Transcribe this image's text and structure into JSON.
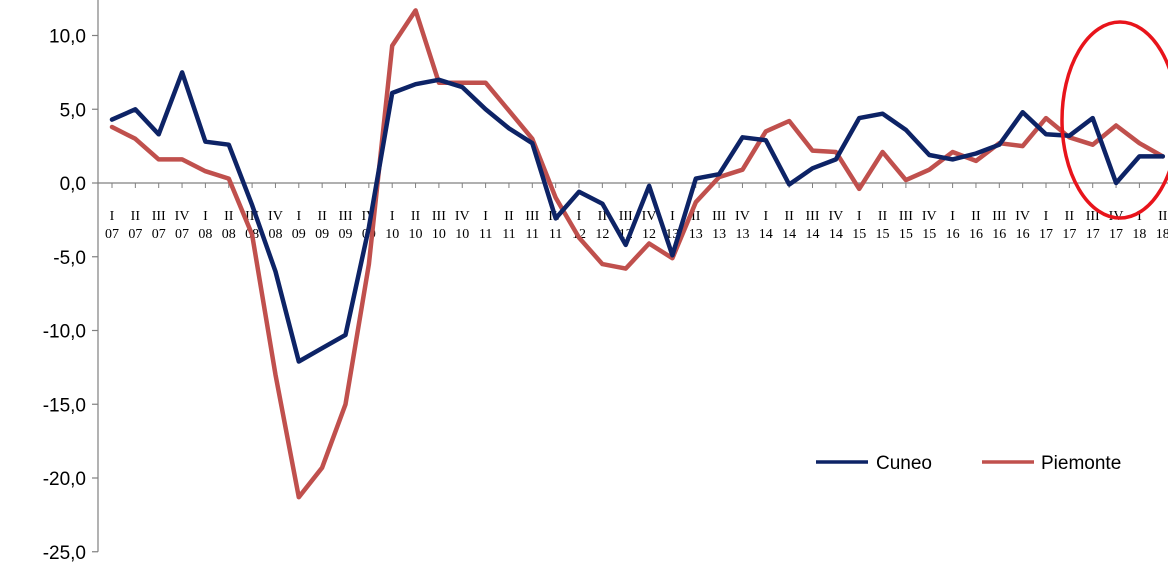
{
  "chart_data": {
    "type": "line",
    "title": "",
    "xlabel": "",
    "ylabel": "",
    "ylim": [
      -25,
      10
    ],
    "yticks": [
      "10,0",
      "5,0",
      "0,0",
      "-5,0",
      "-10,0",
      "-15,0",
      "-20,0",
      "-25,0"
    ],
    "ytick_values": [
      10,
      5,
      0,
      -5,
      -10,
      -15,
      -20,
      -25
    ],
    "grid": false,
    "legend_position": "bottom-right",
    "categories": [
      {
        "q": "I",
        "y": "07"
      },
      {
        "q": "II",
        "y": "07"
      },
      {
        "q": "III",
        "y": "07"
      },
      {
        "q": "IV",
        "y": "07"
      },
      {
        "q": "I",
        "y": "08"
      },
      {
        "q": "II",
        "y": "08"
      },
      {
        "q": "III",
        "y": "08"
      },
      {
        "q": "IV",
        "y": "08"
      },
      {
        "q": "I",
        "y": "09"
      },
      {
        "q": "II",
        "y": "09"
      },
      {
        "q": "III",
        "y": "09"
      },
      {
        "q": "IV",
        "y": "09"
      },
      {
        "q": "I",
        "y": "10"
      },
      {
        "q": "II",
        "y": "10"
      },
      {
        "q": "III",
        "y": "10"
      },
      {
        "q": "IV",
        "y": "10"
      },
      {
        "q": "I",
        "y": "11"
      },
      {
        "q": "II",
        "y": "11"
      },
      {
        "q": "III",
        "y": "11"
      },
      {
        "q": "IV",
        "y": "11"
      },
      {
        "q": "I",
        "y": "12"
      },
      {
        "q": "II",
        "y": "12"
      },
      {
        "q": "III",
        "y": "12"
      },
      {
        "q": "IV",
        "y": "12"
      },
      {
        "q": "I",
        "y": "13"
      },
      {
        "q": "II",
        "y": "13"
      },
      {
        "q": "III",
        "y": "13"
      },
      {
        "q": "IV",
        "y": "13"
      },
      {
        "q": "I",
        "y": "14"
      },
      {
        "q": "II",
        "y": "14"
      },
      {
        "q": "III",
        "y": "14"
      },
      {
        "q": "IV",
        "y": "14"
      },
      {
        "q": "I",
        "y": "15"
      },
      {
        "q": "II",
        "y": "15"
      },
      {
        "q": "III",
        "y": "15"
      },
      {
        "q": "IV",
        "y": "15"
      },
      {
        "q": "I",
        "y": "16"
      },
      {
        "q": "II",
        "y": "16"
      },
      {
        "q": "III",
        "y": "16"
      },
      {
        "q": "IV",
        "y": "16"
      },
      {
        "q": "I",
        "y": "17"
      },
      {
        "q": "II",
        "y": "17"
      },
      {
        "q": "III",
        "y": "17"
      },
      {
        "q": "IV",
        "y": "17"
      },
      {
        "q": "I",
        "y": "18"
      },
      {
        "q": "II",
        "y": "18"
      }
    ],
    "series": [
      {
        "name": "Cuneo",
        "color": "#0d2366",
        "values": [
          4.3,
          5.0,
          3.3,
          7.5,
          2.8,
          2.6,
          -1.5,
          -6.0,
          -12.1,
          -11.2,
          -10.3,
          -3.0,
          6.1,
          6.7,
          7.0,
          6.5,
          5.0,
          3.7,
          2.7,
          -2.4,
          -0.6,
          -1.4,
          -4.2,
          -0.2,
          -4.9,
          0.3,
          0.6,
          3.1,
          2.9,
          -0.1,
          1.0,
          1.6,
          4.4,
          4.7,
          3.6,
          1.9,
          1.6,
          2.0,
          2.6,
          4.8,
          3.3,
          3.2,
          4.4,
          0.0,
          1.8,
          1.8
        ]
      },
      {
        "name": "Piemonte",
        "color": "#c0504d",
        "values": [
          3.8,
          3.0,
          1.6,
          1.6,
          0.8,
          0.3,
          -3.5,
          -13.0,
          -21.3,
          -19.3,
          -15.0,
          -5.5,
          9.3,
          11.7,
          6.8,
          6.8,
          6.8,
          4.9,
          3.0,
          -1.0,
          -3.7,
          -5.5,
          -5.8,
          -4.1,
          -5.1,
          -1.3,
          0.4,
          0.9,
          3.5,
          4.2,
          2.2,
          2.1,
          -0.4,
          2.1,
          0.2,
          0.9,
          2.1,
          1.5,
          2.7,
          2.5,
          4.4,
          3.1,
          2.6,
          3.9,
          2.7,
          1.8
        ]
      }
    ],
    "annotation": {
      "shape": "ellipse",
      "color": "#e8141b",
      "highlights": "I 17 – I 18"
    }
  }
}
